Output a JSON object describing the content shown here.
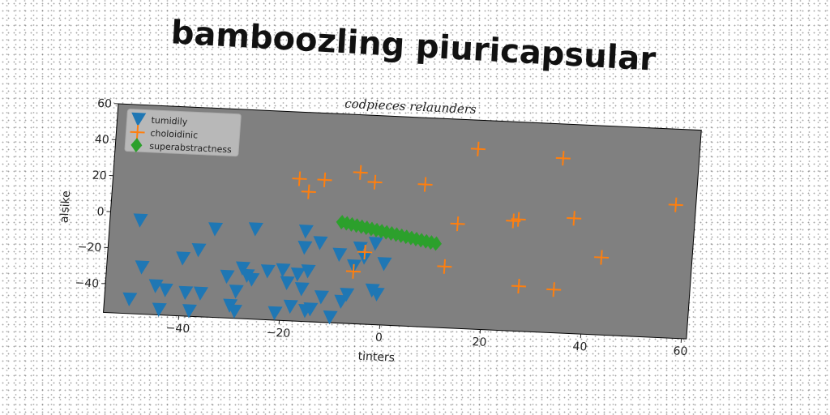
{
  "title": "bamboozling piuricapsular",
  "chart_data": {
    "type": "scatter",
    "title": "codpieces relaunders",
    "xlabel": "tinters",
    "ylabel": "alsike",
    "xlim": [
      -55,
      61
    ],
    "ylim": [
      -56,
      60
    ],
    "xticks": [
      -40,
      -20,
      0,
      20,
      40,
      60
    ],
    "yticks": [
      -40,
      -20,
      0,
      20,
      40,
      60
    ],
    "xtick_labels": [
      "−40",
      "−20",
      "0",
      "20",
      "40",
      "60"
    ],
    "ytick_labels": [
      "−40",
      "−20",
      "0",
      "20",
      "40",
      "60"
    ],
    "grid": false,
    "legend_position": "top-left",
    "plot_background": "#808080",
    "series": [
      {
        "name": "tumidily",
        "marker": "triangle-down",
        "color": "#1f77b4",
        "points": [
          [
            -49,
            -4
          ],
          [
            -48,
            -30
          ],
          [
            -50,
            -48
          ],
          [
            -45,
            -40
          ],
          [
            -44,
            -53
          ],
          [
            -43,
            -42
          ],
          [
            -40,
            -24
          ],
          [
            -39,
            -43
          ],
          [
            -38,
            -53
          ],
          [
            -37,
            -19
          ],
          [
            -36,
            -43
          ],
          [
            -34,
            -7
          ],
          [
            -31,
            -33
          ],
          [
            -30,
            -49
          ],
          [
            -29,
            -41
          ],
          [
            -29,
            -52
          ],
          [
            -28,
            -28
          ],
          [
            -27,
            -32
          ],
          [
            -26,
            -6
          ],
          [
            -23,
            -29
          ],
          [
            -21,
            -52
          ],
          [
            -20,
            -28
          ],
          [
            -19,
            -35
          ],
          [
            -17,
            -30
          ],
          [
            -16,
            -6
          ],
          [
            -16,
            -15
          ],
          [
            -16,
            -38
          ],
          [
            -15,
            -28
          ],
          [
            -14,
            -49
          ],
          [
            -13,
            -12
          ],
          [
            -12,
            -42
          ],
          [
            -10,
            -53
          ],
          [
            -9,
            -18
          ],
          [
            -8,
            -44
          ],
          [
            -7,
            -40
          ],
          [
            -6,
            -24
          ],
          [
            -5,
            -14
          ],
          [
            -4,
            -19
          ],
          [
            -2,
            -11
          ],
          [
            -1,
            -39
          ],
          [
            0,
            -22
          ],
          [
            -2,
            -37
          ],
          [
            -18,
            -48
          ],
          [
            -15,
            -50
          ],
          [
            -26,
            -34
          ]
        ]
      },
      {
        "name": "choloidinic",
        "marker": "plus",
        "color": "#ff7f0e",
        "points": [
          [
            -18,
            23
          ],
          [
            -16,
            16
          ],
          [
            -13,
            23
          ],
          [
            -6,
            28
          ],
          [
            -3,
            23
          ],
          [
            -4,
            -16
          ],
          [
            -6,
            -27
          ],
          [
            7,
            23
          ],
          [
            12,
            -22
          ],
          [
            14,
            2
          ],
          [
            17,
            44
          ],
          [
            25,
            5
          ],
          [
            26,
            6
          ],
          [
            27,
            -31
          ],
          [
            34,
            41
          ],
          [
            34,
            -32
          ],
          [
            37,
            8
          ],
          [
            43,
            -13
          ],
          [
            57,
            18
          ]
        ]
      },
      {
        "name": "superabstractness",
        "marker": "diamond",
        "color": "#2ca02c",
        "points": [
          [
            -9,
            0
          ],
          [
            -8,
            -0.5
          ],
          [
            -7,
            -1
          ],
          [
            -6,
            -1.5
          ],
          [
            -5,
            -2
          ],
          [
            -4,
            -2.5
          ],
          [
            -3,
            -3
          ],
          [
            -2,
            -3.5
          ],
          [
            -1,
            -4
          ],
          [
            0,
            -4.5
          ],
          [
            1,
            -5
          ],
          [
            2,
            -5.5
          ],
          [
            3,
            -6
          ],
          [
            4,
            -6.5
          ],
          [
            5,
            -7
          ],
          [
            6,
            -7.5
          ],
          [
            7,
            -8
          ],
          [
            8,
            -8.5
          ],
          [
            9,
            -9
          ],
          [
            10,
            -9.5
          ]
        ]
      }
    ]
  }
}
